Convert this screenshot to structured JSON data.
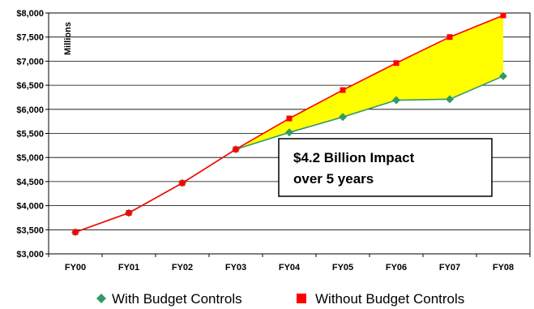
{
  "chart_data": {
    "type": "line",
    "title": "",
    "xlabel": "",
    "ylabel": "Millions",
    "categories": [
      "FY00",
      "FY01",
      "FY02",
      "FY03",
      "FY04",
      "FY05",
      "FY06",
      "FY07",
      "FY08"
    ],
    "ylim": [
      3000,
      8000
    ],
    "yticks": [
      "$3,000",
      "$3,500",
      "$4,000",
      "$4,500",
      "$5,000",
      "$5,500",
      "$6,000",
      "$6,500",
      "$7,000",
      "$7,500",
      "$8,000"
    ],
    "ytick_values": [
      3000,
      3500,
      4000,
      4500,
      5000,
      5500,
      6000,
      6500,
      7000,
      7500,
      8000
    ],
    "grid": true,
    "legend_position": "bottom",
    "series": [
      {
        "name": "With Budget Controls",
        "color": "#339966",
        "marker": "diamond",
        "values": [
          3450,
          3850,
          4470,
          5170,
          5520,
          5840,
          6190,
          6210,
          6690
        ]
      },
      {
        "name": "Without Budget Controls",
        "color": "#ff0000",
        "marker": "square",
        "values": [
          3450,
          3850,
          4470,
          5170,
          5810,
          6400,
          6960,
          7500,
          7950
        ]
      }
    ],
    "fill_between": {
      "color": "#ffff00",
      "from_index": 3
    },
    "annotation": {
      "line1": "$4.2 Billion Impact",
      "line2": "over 5 years"
    }
  }
}
